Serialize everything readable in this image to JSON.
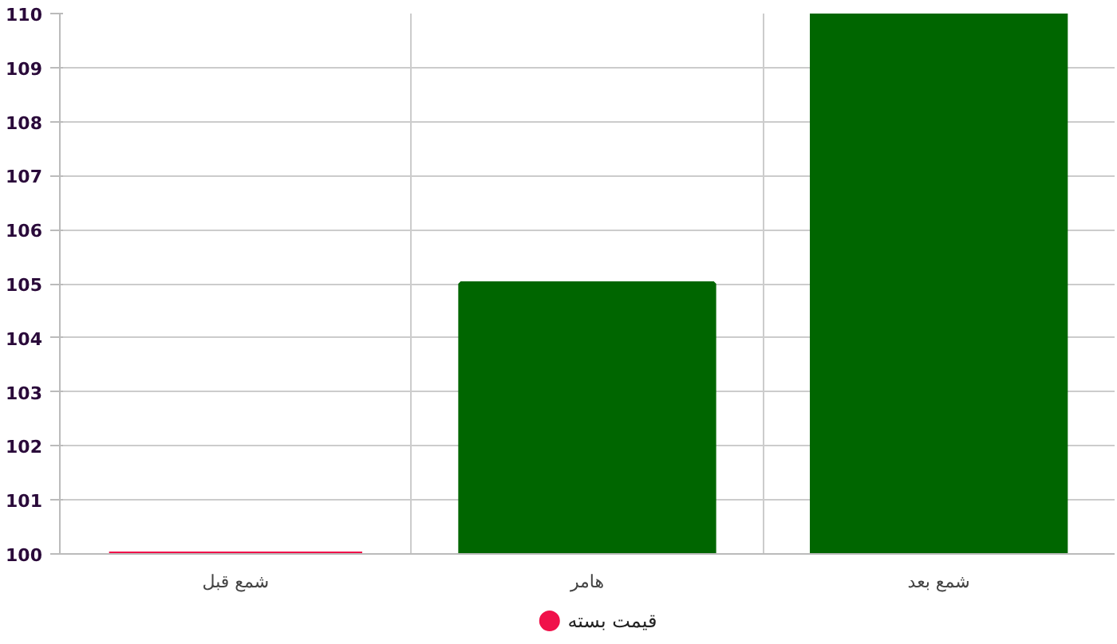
{
  "chart_data": {
    "type": "bar",
    "categories": [
      "شمع قبل",
      "هامر",
      "شمع بعد"
    ],
    "series": [
      {
        "name": "قیمت بسته",
        "values": [
          100,
          105,
          110
        ]
      }
    ],
    "colors": [
      "#f0114a",
      "#006600",
      "#006600"
    ],
    "ylim": [
      100,
      110
    ],
    "yticks": [
      100,
      101,
      102,
      103,
      104,
      105,
      106,
      107,
      108,
      109,
      110
    ],
    "grid": true,
    "legend": "bottom"
  }
}
